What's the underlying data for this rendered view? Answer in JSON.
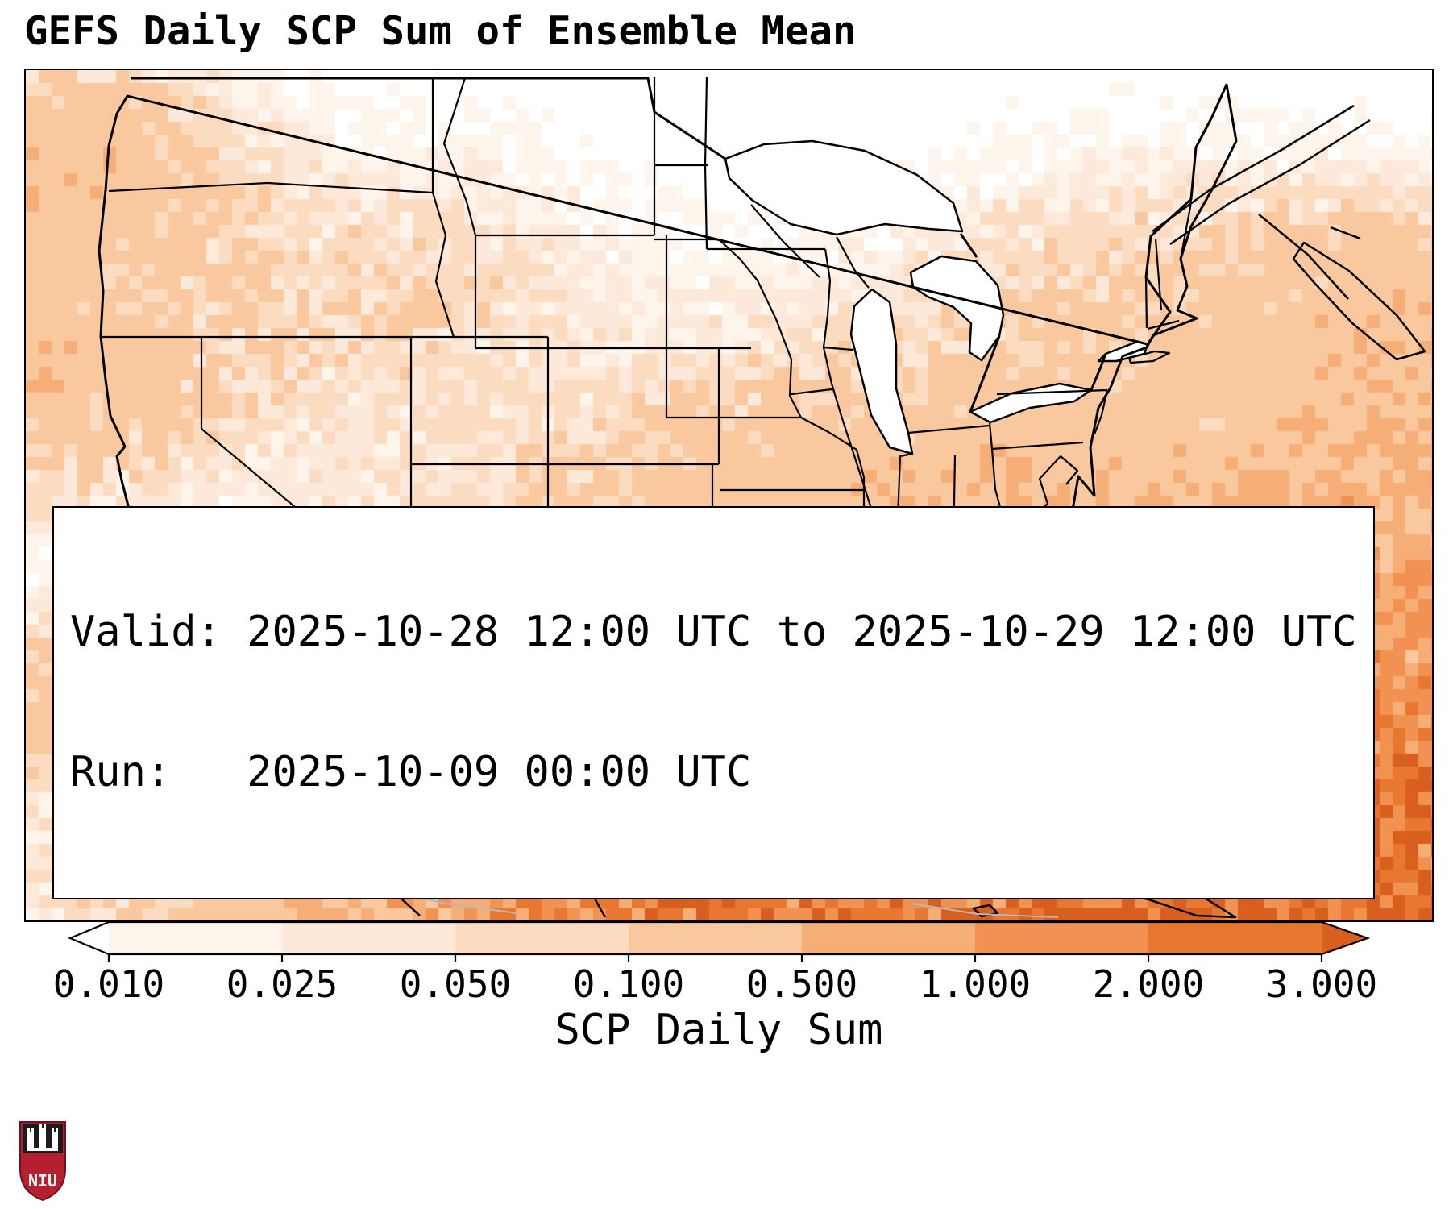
{
  "title": "GEFS Daily SCP Sum of Ensemble Mean",
  "info_box": {
    "line1": "Valid: 2025-10-28 12:00 UTC to 2025-10-29 12:00 UTC",
    "line2": "Run:   2025-10-09 00:00 UTC"
  },
  "colorbar": {
    "label": "SCP Daily Sum",
    "tick_labels": [
      "0.010",
      "0.025",
      "0.050",
      "0.100",
      "0.500",
      "1.000",
      "2.000",
      "3.000"
    ],
    "segment_colors": [
      "#fdf4ec",
      "#fce9d9",
      "#fbdcc1",
      "#f9c89e",
      "#f6ae77",
      "#f19252",
      "#e87730"
    ],
    "under_color": "#ffffff",
    "over_color": "#d95f1e"
  },
  "logo": {
    "text": "NIU",
    "shield_color": "#b51f2e",
    "top_color": "#1b1b1b"
  },
  "chart_data": {
    "type": "heatmap",
    "title": "GEFS Daily SCP Sum of Ensemble Mean",
    "variable": "SCP Daily Sum",
    "valid": "2025-10-28 12:00 UTC to 2025-10-29 12:00 UTC",
    "run": "2025-10-09 00:00 UTC",
    "levels": [
      0.01,
      0.025,
      0.05,
      0.1,
      0.5,
      1.0,
      2.0,
      3.0
    ],
    "legend_position": "bottom",
    "region": "Contiguous United States",
    "summary": "Highest SCP daily-sum values (0.5 to 3+) over the Gulf of Mexico, Gulf Coast (Texas to Florida) and southwest Atlantic; light values (0.01-0.1) over the southern Plains, Southeast and Pacific Northwest coast; near zero over the northern Plains, Rockies and Great Lakes.",
    "heat_blobs": [
      {
        "x": 0.63,
        "y": 1.02,
        "s": 0.21,
        "a": 2.0
      },
      {
        "x": 0.6,
        "y": 0.8,
        "s": 0.1,
        "a": 0.7
      },
      {
        "x": 0.47,
        "y": 0.88,
        "s": 0.09,
        "a": 0.7
      },
      {
        "x": 0.7,
        "y": 0.78,
        "s": 0.08,
        "a": 0.8
      },
      {
        "x": 0.92,
        "y": 0.83,
        "s": 0.13,
        "a": 1.3
      },
      {
        "x": 1.0,
        "y": 0.55,
        "s": 0.12,
        "a": 0.6
      },
      {
        "x": 0.99,
        "y": 0.3,
        "s": 0.08,
        "a": 0.3
      },
      {
        "x": 0.55,
        "y": 0.6,
        "s": 0.13,
        "a": 0.18
      },
      {
        "x": 0.63,
        "y": 0.5,
        "s": 0.1,
        "a": 0.14
      },
      {
        "x": 0.02,
        "y": 0.12,
        "s": 0.07,
        "a": 0.4
      },
      {
        "x": 0.0,
        "y": 0.35,
        "s": 0.08,
        "a": 0.35
      },
      {
        "x": 0.05,
        "y": 0.75,
        "s": 0.06,
        "a": 0.2
      },
      {
        "x": 0.25,
        "y": 0.28,
        "s": 0.1,
        "a": 0.08
      },
      {
        "x": 0.8,
        "y": 0.3,
        "s": 0.1,
        "a": 0.12
      },
      {
        "x": 0.72,
        "y": 0.6,
        "s": 0.1,
        "a": 0.22
      },
      {
        "x": 1.0,
        "y": 0.95,
        "s": 0.1,
        "a": 1.1
      },
      {
        "x": 0.35,
        "y": 0.97,
        "s": 0.12,
        "a": 0.5
      },
      {
        "x": 0.85,
        "y": 1.0,
        "s": 0.15,
        "a": 1.2
      }
    ]
  }
}
